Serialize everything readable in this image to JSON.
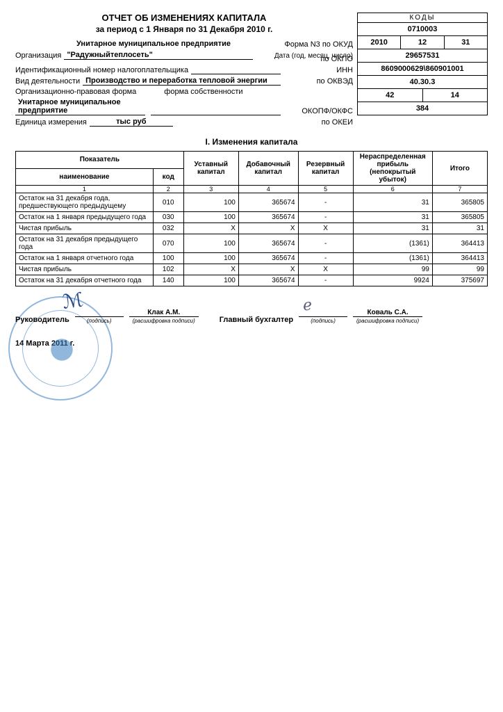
{
  "title": "ОТЧЕТ ОБ ИЗМЕНЕНИЯХ КАПИТАЛА",
  "subtitle": "за период с 1 Января по 31 Декабря 2010 г.",
  "form_label": "Форма N3 по ОКУД",
  "date_label": "Дата (год, месяц, число)",
  "codes_header": "КОДЫ",
  "codes": {
    "okud": "0710003",
    "year": "2010",
    "month": "12",
    "day": "31",
    "okpo": "29657531",
    "inn": "8609000629\\860901001",
    "okved": "40.30.3",
    "okopf": "42",
    "okfs": "14",
    "okei": "384"
  },
  "org": {
    "label": "Организация",
    "line1": "Унитарное муниципальное предприятие",
    "line2": "\"Радужныйтеплосеть\"",
    "okpo_label": "по ОКПО"
  },
  "taxid": {
    "label": "Идентификационный номер налогоплательщика",
    "right": "ИНН"
  },
  "activity": {
    "label": "Вид деятельности",
    "value": "Производство и переработка тепловой энергии",
    "right": "по ОКВЭД"
  },
  "legal": {
    "label": "Организационно-правовая форма",
    "own_label": "форма собственности",
    "value": "Унитарное муниципальное предприятие",
    "right": "ОКОПФ/ОКФС"
  },
  "unit": {
    "label": "Единица измерения",
    "value": "тыс руб",
    "right": "по ОКЕИ"
  },
  "section1": "I. Изменения капитала",
  "table": {
    "head": {
      "indicator": "Показатель",
      "name": "наименование",
      "code": "код",
      "c3": "Уставный капитал",
      "c4": "Добавочный капитал",
      "c5": "Резервный капитал",
      "c6": "Нераспределенная прибыль (непокрытый убыток)",
      "c7": "Итого"
    },
    "colnums": [
      "1",
      "2",
      "3",
      "4",
      "5",
      "6",
      "7"
    ],
    "rows": [
      {
        "name": "Остаток на 31 декабря года, предшествующего предыдущему",
        "code": "010",
        "c3": "100",
        "c4": "365674",
        "c5": "-",
        "c6": "31",
        "c7": "365805"
      },
      {
        "name": "Остаток на 1 января предыдущего года",
        "code": "030",
        "c3": "100",
        "c4": "365674",
        "c5": "-",
        "c6": "31",
        "c7": "365805"
      },
      {
        "name": "Чистая прибыль",
        "code": "032",
        "c3": "X",
        "c4": "X",
        "c5": "X",
        "c6": "31",
        "c7": "31"
      },
      {
        "name": "Остаток на 31 декабря предыдущего года",
        "code": "070",
        "c3": "100",
        "c4": "365674",
        "c5": "-",
        "c6": "(1361)",
        "c7": "364413"
      },
      {
        "name": "Остаток на 1 января отчетного года",
        "code": "100",
        "c3": "100",
        "c4": "365674",
        "c5": "-",
        "c6": "(1361)",
        "c7": "364413"
      },
      {
        "name": "Чистая прибыль",
        "code": "102",
        "c3": "X",
        "c4": "X",
        "c5": "X",
        "c6": "99",
        "c7": "99"
      },
      {
        "name": "Остаток на 31 декабря отчетного года",
        "code": "140",
        "c3": "100",
        "c4": "365674",
        "c5": "-",
        "c6": "9924",
        "c7": "375697"
      }
    ]
  },
  "sign": {
    "head_label": "Руководитель",
    "head_name": "Клак А.М.",
    "acct_label": "Главный бухгалтер",
    "acct_name": "Коваль С.А.",
    "sig_sub": "(подпись)",
    "name_sub": "(расшифровка подписи)",
    "date": "14 Марта 2011 г."
  }
}
